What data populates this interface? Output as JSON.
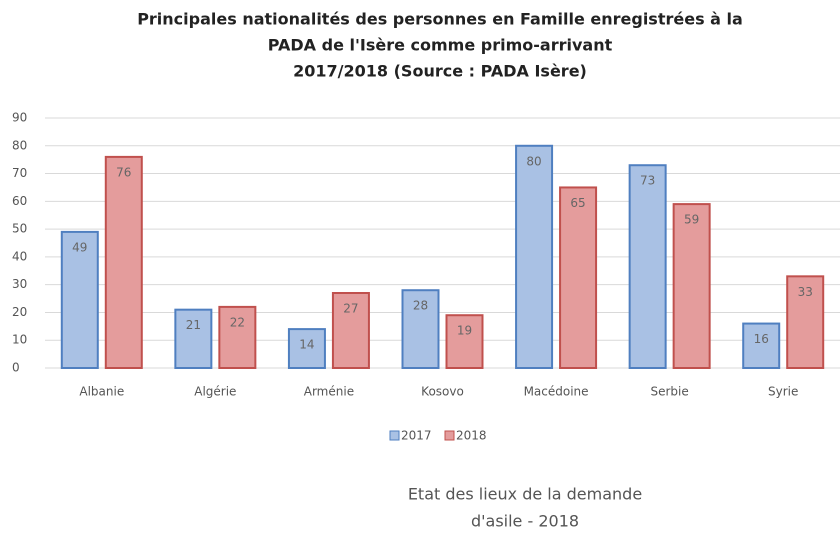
{
  "chart_data": {
    "type": "bar",
    "title": [
      "Principales nationalités des personnes en Famille enregistrées à la",
      "PADA de l'Isère comme primo-arrivant",
      "2017/2018 (Source : PADA Isère)"
    ],
    "categories": [
      "Albanie",
      "Algérie",
      "Arménie",
      "Kosovo",
      "Macédoine",
      "Serbie",
      "Syrie"
    ],
    "series": [
      {
        "name": "2017",
        "color": "#a9c1e4",
        "values": [
          49,
          21,
          14,
          28,
          80,
          73,
          16
        ]
      },
      {
        "name": "2018",
        "color": "#e49c9c",
        "values": [
          76,
          22,
          27,
          19,
          65,
          59,
          33
        ]
      }
    ],
    "ylim": [
      0,
      90
    ],
    "yticks": [
      0,
      10,
      20,
      30,
      40,
      50,
      60,
      70,
      80,
      90
    ],
    "grid": true,
    "legend": "bottom",
    "annotation": [
      "Etat des lieux de la demande",
      "d'asile - 2018"
    ]
  }
}
